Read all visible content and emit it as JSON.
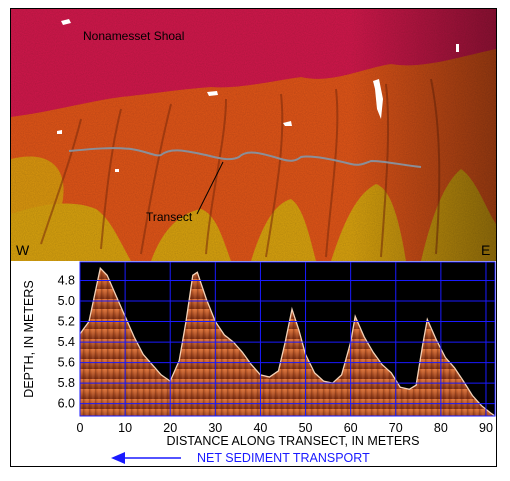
{
  "map": {
    "shoal_label": "Nonamesset Shoal",
    "transect_label": "Transect",
    "west_label": "W",
    "east_label": "E",
    "colors": {
      "shallow": "#d11a4e",
      "mid": "#e0561e",
      "deep": "#d8a218",
      "transect_line": "#8a8f99"
    }
  },
  "chart_data": {
    "type": "area",
    "xlabel": "DISTANCE ALONG TRANSECT, IN METERS",
    "ylabel": "DEPTH, IN METERS",
    "xlim": [
      0,
      92
    ],
    "ylim": [
      6.12,
      4.62
    ],
    "xticks": [
      0,
      10,
      20,
      30,
      40,
      50,
      60,
      70,
      80,
      90
    ],
    "yticks": [
      "4.8",
      "5.0",
      "5.2",
      "5.4",
      "5.6",
      "5.8",
      "6.0"
    ],
    "grid": true,
    "x": [
      0,
      2,
      4.5,
      6,
      8,
      10,
      12,
      14,
      16,
      18,
      20,
      22,
      23.5,
      25,
      26,
      28,
      30,
      32,
      34,
      36,
      38,
      40,
      42,
      44,
      45.5,
      47,
      48.5,
      50,
      52,
      54,
      56,
      58,
      60,
      61,
      63,
      65,
      67,
      69,
      71,
      73,
      74.5,
      76,
      77,
      79,
      81,
      83,
      85,
      87,
      89,
      91,
      92
    ],
    "y": [
      5.32,
      5.2,
      4.68,
      4.75,
      4.95,
      5.15,
      5.35,
      5.52,
      5.62,
      5.72,
      5.78,
      5.58,
      5.2,
      4.75,
      4.72,
      4.98,
      5.2,
      5.33,
      5.4,
      5.5,
      5.62,
      5.72,
      5.74,
      5.68,
      5.4,
      5.08,
      5.28,
      5.52,
      5.7,
      5.78,
      5.8,
      5.72,
      5.4,
      5.15,
      5.35,
      5.5,
      5.62,
      5.7,
      5.84,
      5.86,
      5.82,
      5.42,
      5.18,
      5.38,
      5.55,
      5.65,
      5.78,
      5.92,
      6.02,
      6.09,
      6.12
    ]
  },
  "transport": {
    "label": "NET SEDIMENT TRANSPORT",
    "color": "#1a1aff"
  }
}
